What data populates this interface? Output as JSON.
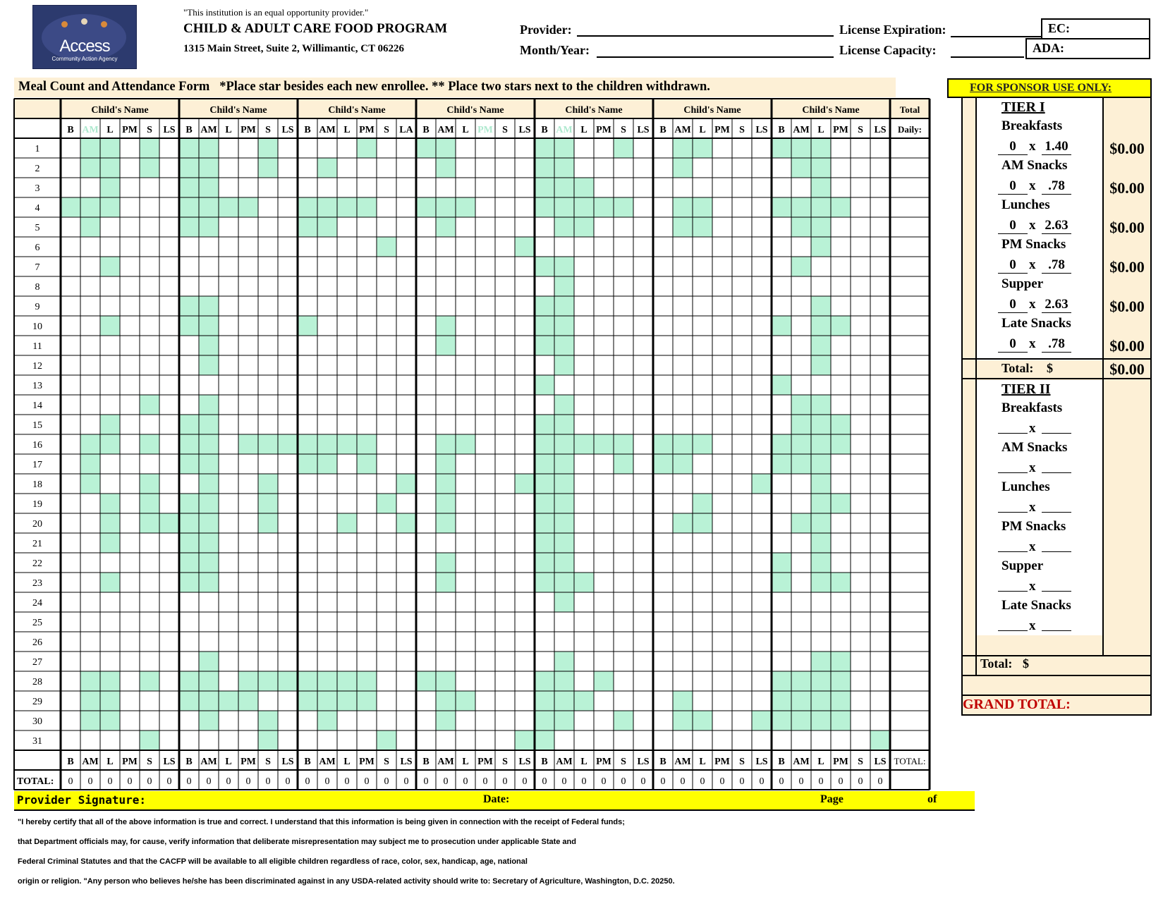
{
  "header": {
    "equal_opportunity": "\"This institution is an equal opportunity provider.\"",
    "program_title": "CHILD & ADULT CARE FOOD PROGRAM",
    "address": "1315 Main Street, Suite 2, Willimantic, CT 06226",
    "logo_text": "Access",
    "logo_subtext": "Community Action Agency",
    "provider_label": "Provider:",
    "month_year_label": "Month/Year:",
    "license_expiration_label": "License Expiration:",
    "license_capacity_label": "License Capacity:",
    "ec_label": "EC:",
    "ada_label": "ADA:"
  },
  "form": {
    "banner": "Meal Count and Attendance Form   *Place star besides each new enrollee. ** Place two stars next to the children withdrawn.",
    "child_name_header": "Child's Name",
    "total_header": "Total",
    "daily_header": "Daily:",
    "total_footer": "TOTAL:",
    "total_row_label": "TOTAL:",
    "child_columns": [
      [
        "B",
        "AM",
        "L",
        "PM",
        "S",
        "LS"
      ],
      [
        "B",
        "AM",
        "L",
        "PM",
        "S",
        "LS"
      ],
      [
        "B",
        "AM",
        "L",
        "PM",
        "S",
        "LA"
      ],
      [
        "B",
        "AM",
        "L",
        "PM",
        "S",
        "LS"
      ],
      [
        "B",
        "AM",
        "L",
        "PM",
        "S",
        "LS"
      ],
      [
        "B",
        "AM",
        "L",
        "PM",
        "S",
        "LS"
      ],
      [
        "B",
        "AM",
        "L",
        "PM",
        "S",
        "LS"
      ]
    ],
    "footer_columns": [
      [
        "B",
        "AM",
        "L",
        "PM",
        "S",
        "LS"
      ],
      [
        "B",
        "AM",
        "L",
        "PM",
        "S",
        "LS"
      ],
      [
        "B",
        "AM",
        "L",
        "PM",
        "S",
        "LS"
      ],
      [
        "B",
        "AM",
        "L",
        "PM",
        "S",
        "LS"
      ],
      [
        "B",
        "AM",
        "L",
        "PM",
        "S",
        "LS"
      ],
      [
        "B",
        "AM",
        "L",
        "PM",
        "S",
        "LS"
      ],
      [
        "B",
        "AM",
        "L",
        "PM",
        "S",
        "LS"
      ]
    ],
    "days": [
      "1",
      "2",
      "3",
      "4",
      "5",
      "6",
      "7",
      "8",
      "9",
      "10",
      "11",
      "12",
      "13",
      "14",
      "15",
      "16",
      "17",
      "18",
      "19",
      "20",
      "21",
      "22",
      "23",
      "24",
      "25",
      "26",
      "27",
      "28",
      "29",
      "30",
      "31"
    ],
    "totals": [
      [
        "0",
        "0",
        "0",
        "0",
        "0",
        "0"
      ],
      [
        "0",
        "0",
        "0",
        "0",
        "0",
        "0"
      ],
      [
        "0",
        "0",
        "0",
        "0",
        "0",
        "0"
      ],
      [
        "0",
        "0",
        "0",
        "0",
        "0",
        "0"
      ],
      [
        "0",
        "0",
        "0",
        "0",
        "0",
        "0"
      ],
      [
        "0",
        "0",
        "0",
        "0",
        "0",
        "0"
      ],
      [
        "0",
        "0",
        "0",
        "0",
        "0",
        "0"
      ]
    ],
    "shaded_color": "#b9f2d6",
    "shaded_rows": [
      [
        [
          1,
          2,
          4
        ],
        [
          0,
          1,
          4
        ],
        [
          3
        ],
        [
          0,
          1
        ],
        [
          0,
          1,
          4
        ],
        [
          1,
          2
        ],
        [
          0,
          1,
          2
        ]
      ],
      [
        [
          1,
          2,
          4
        ],
        [
          0,
          1,
          4
        ],
        [
          1
        ],
        [
          1
        ],
        [
          0,
          1
        ],
        [
          1
        ],
        [
          1,
          2
        ]
      ],
      [
        [
          2
        ],
        [
          0,
          1
        ],
        [],
        [],
        [
          0,
          1,
          2
        ],
        [],
        [
          2
        ]
      ],
      [
        [
          0,
          1,
          2
        ],
        [
          0,
          1,
          2,
          3
        ],
        [
          0,
          1,
          2,
          3
        ],
        [
          0,
          1,
          2
        ],
        [
          0,
          1,
          2,
          3,
          4
        ],
        [
          1,
          2
        ],
        [
          0,
          1,
          2,
          3
        ]
      ],
      [
        [
          1
        ],
        [
          0,
          1
        ],
        [
          0,
          1
        ],
        [
          1
        ],
        [
          1,
          2
        ],
        [
          1,
          2
        ],
        [
          1,
          2
        ]
      ],
      [
        [],
        [],
        [
          4
        ],
        [
          5
        ],
        [],
        [],
        [
          2
        ]
      ],
      [
        [
          2
        ],
        [],
        [],
        [],
        [
          0,
          1
        ],
        [],
        [
          1
        ]
      ],
      [
        [],
        [],
        [],
        [],
        [
          1
        ],
        [],
        []
      ],
      [
        [],
        [
          0,
          1
        ],
        [],
        [],
        [
          0,
          1
        ],
        [],
        [
          2
        ]
      ],
      [
        [
          2
        ],
        [
          0,
          1
        ],
        [
          0
        ],
        [
          1
        ],
        [
          0,
          1
        ],
        [],
        [
          0,
          2,
          3
        ]
      ],
      [
        [],
        [
          1
        ],
        [],
        [
          1
        ],
        [
          0,
          1
        ],
        [],
        [
          2
        ]
      ],
      [
        [],
        [
          1
        ],
        [],
        [],
        [
          1
        ],
        [],
        [
          2
        ]
      ],
      [
        [],
        [],
        [],
        [],
        [
          0
        ],
        [],
        [
          0
        ]
      ],
      [
        [
          4
        ],
        [
          1
        ],
        [],
        [],
        [
          1
        ],
        [],
        [
          1,
          2
        ]
      ],
      [
        [
          2
        ],
        [
          0,
          1
        ],
        [],
        [],
        [
          0,
          1
        ],
        [],
        [
          1,
          2,
          3
        ]
      ],
      [
        [
          1,
          2,
          4
        ],
        [
          0,
          1,
          3,
          4,
          5
        ],
        [
          0,
          1,
          2,
          3
        ],
        [
          1,
          2
        ],
        [
          0,
          1,
          2,
          3,
          4
        ],
        [
          0,
          1,
          2
        ],
        [
          0,
          1,
          2,
          3
        ]
      ],
      [
        [
          1
        ],
        [
          0,
          1
        ],
        [
          0,
          1,
          3
        ],
        [
          1
        ],
        [
          0,
          1,
          4
        ],
        [
          0,
          1
        ],
        [
          0,
          1,
          2
        ]
      ],
      [
        [
          1,
          4
        ],
        [
          1,
          4
        ],
        [
          5
        ],
        [
          1,
          5
        ],
        [
          0,
          1
        ],
        [
          5
        ],
        [
          2
        ]
      ],
      [
        [
          2,
          4
        ],
        [
          0,
          1,
          4
        ],
        [
          4
        ],
        [
          1
        ],
        [
          0,
          1
        ],
        [
          2
        ],
        [
          2,
          3
        ]
      ],
      [
        [
          2,
          4,
          5
        ],
        [
          0,
          1,
          4
        ],
        [
          2,
          5
        ],
        [
          1
        ],
        [
          0,
          1
        ],
        [
          1,
          2
        ],
        [
          1,
          2
        ]
      ],
      [
        [
          2
        ],
        [
          0,
          1
        ],
        [],
        [],
        [
          0,
          1
        ],
        [],
        [
          2
        ]
      ],
      [
        [],
        [
          0,
          1
        ],
        [],
        [
          1
        ],
        [
          0,
          1
        ],
        [],
        [
          0,
          2
        ]
      ],
      [
        [
          2
        ],
        [
          0,
          1
        ],
        [],
        [
          1
        ],
        [
          0,
          1,
          2
        ],
        [],
        [
          0,
          2,
          3
        ]
      ],
      [
        [],
        [],
        [],
        [],
        [
          1
        ],
        [],
        []
      ],
      [
        [],
        [],
        [],
        [],
        [],
        [],
        []
      ],
      [
        [],
        [],
        [],
        [],
        [],
        [],
        []
      ],
      [
        [],
        [
          1
        ],
        [],
        [],
        [
          1
        ],
        [],
        [
          2,
          3
        ]
      ],
      [
        [
          1,
          2,
          4
        ],
        [
          0,
          1,
          3,
          4,
          5
        ],
        [
          0,
          1,
          2,
          3
        ],
        [
          0,
          1
        ],
        [
          0,
          1,
          3
        ],
        [],
        [
          0,
          1,
          2,
          3
        ]
      ],
      [
        [
          1,
          2
        ],
        [
          0,
          1,
          2,
          3
        ],
        [
          0,
          1,
          2,
          3
        ],
        [
          1,
          2
        ],
        [
          0,
          1,
          2
        ],
        [
          1
        ],
        [
          0,
          1,
          2,
          3
        ]
      ],
      [
        [
          1,
          2
        ],
        [
          1,
          4
        ],
        [
          1
        ],
        [
          1
        ],
        [
          0,
          1,
          4
        ],
        [
          1,
          2,
          5
        ],
        [
          0,
          1,
          2,
          3
        ]
      ],
      [
        [
          4
        ],
        [
          4
        ],
        [
          4
        ],
        [
          5
        ],
        [
          0
        ],
        [],
        [
          5
        ]
      ]
    ]
  },
  "sponsor": {
    "title": "FOR SPONSOR USE ONLY:",
    "tier1": "TIER I",
    "tier2": "TIER II",
    "tier1_items": [
      {
        "label": "Breakfasts",
        "count": "0",
        "rate": "1.40",
        "amount": "$0.00"
      },
      {
        "label": "AM Snacks",
        "count": "0",
        "rate": ".78",
        "amount": "$0.00"
      },
      {
        "label": "Lunches",
        "count": "0",
        "rate": "2.63",
        "amount": "$0.00"
      },
      {
        "label": "PM Snacks",
        "count": "0",
        "rate": ".78",
        "amount": "$0.00"
      },
      {
        "label": "Supper",
        "count": "0",
        "rate": "2.63",
        "amount": "$0.00"
      },
      {
        "label": "Late Snacks",
        "count": "0",
        "rate": ".78",
        "amount": "$0.00"
      }
    ],
    "tier2_items": [
      "Breakfasts",
      "AM Snacks",
      "Lunches",
      "PM Snacks",
      "Supper",
      "Late Snacks"
    ],
    "times": "x",
    "total_label": "Total:",
    "dollar": "$",
    "tier1_total": "$0.00",
    "grand_total": "GRAND TOTAL:"
  },
  "signature": {
    "provider_signature": "Provider Signature:",
    "date": "Date:",
    "page": "Page",
    "of": "of"
  },
  "certification": [
    "\"I hereby certify that all of the above information is true and correct. I understand that this information is being given in connection with the receipt of Federal funds;",
    "that Department officials may, for cause, verify information that deliberate misrepresentation may subject me to prosecution under applicable State and",
    "Federal Criminal Statutes and that the CACFP will be available to all eligible children regardless of race, color, sex, handicap, age, national",
    "origin or religion. \"Any person who believes he/she has been discriminated against in any USDA-related activity should write to: Secretary of Agriculture, Washington, D.C. 20250."
  ]
}
